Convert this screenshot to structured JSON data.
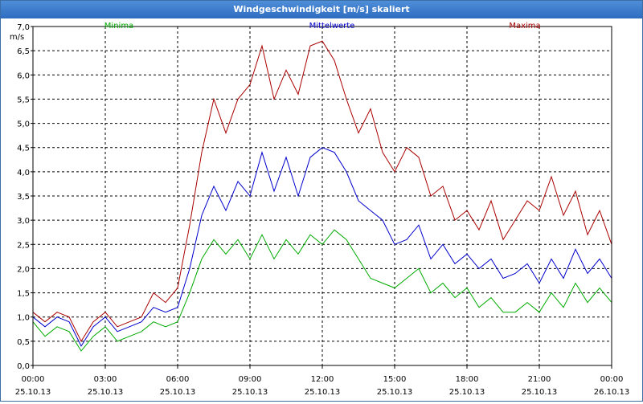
{
  "window": {
    "title": "Windgeschwindigkeit [m/s] skaliert"
  },
  "chart_data": {
    "type": "line",
    "title": "Windgeschwindigkeit [m/s] skaliert",
    "ylabel": "m/s",
    "xlabel": "",
    "ylim": [
      0,
      7
    ],
    "xlim": [
      0,
      24
    ],
    "grid": true,
    "legend": "top",
    "y_ticks": [
      "0,0",
      "0,5",
      "1,0",
      "1,5",
      "2,0",
      "2,5",
      "3,0",
      "3,5",
      "4,0",
      "4,5",
      "5,0",
      "5,5",
      "6,0",
      "6,5",
      "7,0"
    ],
    "x_ticks": [
      {
        "time": "00:00",
        "date": "25.10.13"
      },
      {
        "time": "03:00",
        "date": "25.10.13"
      },
      {
        "time": "06:00",
        "date": "25.10.13"
      },
      {
        "time": "09:00",
        "date": "25.10.13"
      },
      {
        "time": "12:00",
        "date": "25.10.13"
      },
      {
        "time": "15:00",
        "date": "25.10.13"
      },
      {
        "time": "18:00",
        "date": "25.10.13"
      },
      {
        "time": "21:00",
        "date": "25.10.13"
      },
      {
        "time": "00:00",
        "date": "26.10.13"
      }
    ],
    "x_hours": [
      0,
      0.5,
      1,
      1.5,
      2,
      2.5,
      3,
      3.5,
      4,
      4.5,
      5,
      5.5,
      6,
      6.5,
      7,
      7.5,
      8,
      8.5,
      9,
      9.5,
      10,
      10.5,
      11,
      11.5,
      12,
      12.5,
      13,
      13.5,
      14,
      14.5,
      15,
      15.5,
      16,
      16.5,
      17,
      17.5,
      18,
      18.5,
      19,
      19.5,
      20,
      20.5,
      21,
      21.5,
      22,
      22.5,
      23,
      23.5,
      24
    ],
    "series": [
      {
        "name": "Minima",
        "color": "#00aa00",
        "values": [
          0.9,
          0.6,
          0.8,
          0.7,
          0.3,
          0.6,
          0.8,
          0.5,
          0.6,
          0.7,
          0.9,
          0.8,
          0.9,
          1.5,
          2.2,
          2.6,
          2.3,
          2.6,
          2.2,
          2.7,
          2.2,
          2.6,
          2.3,
          2.7,
          2.5,
          2.8,
          2.6,
          2.2,
          1.8,
          1.7,
          1.6,
          1.8,
          2.0,
          1.5,
          1.7,
          1.4,
          1.6,
          1.2,
          1.4,
          1.1,
          1.1,
          1.3,
          1.1,
          1.5,
          1.2,
          1.7,
          1.3,
          1.6,
          1.3
        ]
      },
      {
        "name": "Mittelwerte",
        "color": "#0000cc",
        "values": [
          1.0,
          0.8,
          1.0,
          0.9,
          0.4,
          0.8,
          1.0,
          0.7,
          0.8,
          0.9,
          1.2,
          1.1,
          1.2,
          2.0,
          3.1,
          3.7,
          3.2,
          3.8,
          3.5,
          4.4,
          3.6,
          4.3,
          3.5,
          4.3,
          4.5,
          4.4,
          4.0,
          3.4,
          3.2,
          3.0,
          2.5,
          2.6,
          2.9,
          2.2,
          2.5,
          2.1,
          2.3,
          2.0,
          2.2,
          1.8,
          1.9,
          2.1,
          1.7,
          2.2,
          1.8,
          2.4,
          1.9,
          2.2,
          1.8
        ]
      },
      {
        "name": "Maxima",
        "color": "#aa0000",
        "values": [
          1.1,
          0.9,
          1.1,
          1.0,
          0.5,
          0.9,
          1.1,
          0.8,
          0.9,
          1.0,
          1.5,
          1.3,
          1.6,
          2.9,
          4.4,
          5.5,
          4.8,
          5.5,
          5.8,
          6.6,
          5.5,
          6.1,
          5.6,
          6.6,
          6.7,
          6.3,
          5.5,
          4.8,
          5.3,
          4.4,
          4.0,
          4.5,
          4.3,
          3.5,
          3.7,
          3.0,
          3.2,
          2.8,
          3.4,
          2.6,
          3.0,
          3.4,
          3.2,
          3.9,
          3.1,
          3.6,
          2.7,
          3.2,
          2.5
        ]
      }
    ]
  }
}
